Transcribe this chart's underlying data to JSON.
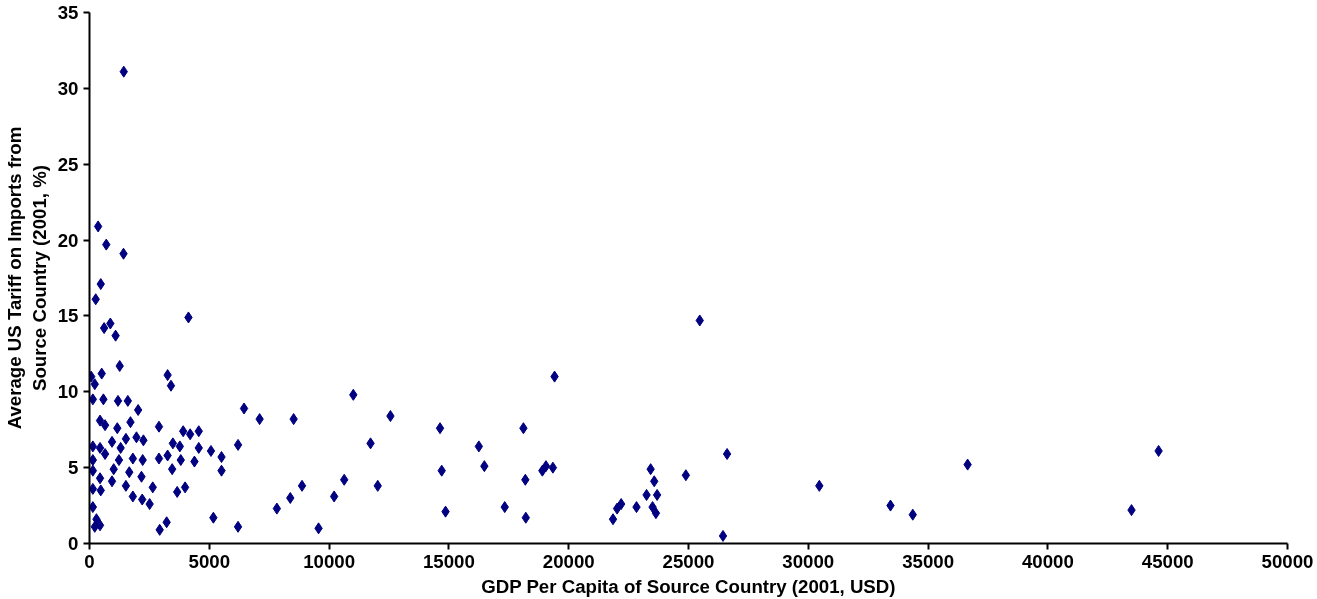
{
  "chart_data": {
    "type": "scatter",
    "xlabel": "GDP Per Capita of Source Country (2001, USD)",
    "ylabel": "Average US Tariff on Imports from Source Country (2001, %)",
    "marker": "diamond",
    "grid": false,
    "xlim": [
      0,
      50000
    ],
    "ylim": [
      0,
      35
    ],
    "xticks": [
      0,
      5000,
      10000,
      15000,
      20000,
      25000,
      30000,
      35000,
      40000,
      45000,
      50000
    ],
    "yticks": [
      0,
      5,
      10,
      15,
      20,
      25,
      30,
      35
    ],
    "series": [
      {
        "color": "#000080",
        "x": [
          1430,
          360,
          700,
          1420,
          470,
          260,
          4130,
          870,
          610,
          1090,
          1260,
          70,
          510,
          3260,
          3400,
          220,
          140,
          580,
          1190,
          1600,
          2030,
          440,
          650,
          1160,
          1710,
          2900,
          3910,
          4560,
          4200,
          140,
          440,
          940,
          1300,
          1520,
          1960,
          2250,
          3480,
          3770,
          4560,
          5070,
          6200,
          140,
          650,
          1230,
          1810,
          2220,
          2900,
          3260,
          3810,
          4380,
          5510,
          140,
          1010,
          1660,
          3450,
          5510,
          440,
          940,
          1520,
          2170,
          2640,
          140,
          470,
          3660,
          3990,
          1810,
          2200,
          2510,
          140,
          7820,
          8380,
          8870,
          10210,
          10630,
          12030,
          14630,
          14700,
          14860,
          11010,
          12560,
          11730,
          6450,
          7100,
          8520,
          290,
          220,
          440,
          2930,
          3220,
          5170,
          6200,
          9560,
          25470,
          19410,
          18110,
          16250,
          16480,
          18190,
          19050,
          18900,
          19340,
          17330,
          18210,
          21850,
          22020,
          22190,
          22830,
          23250,
          23420,
          23570,
          23690,
          23500,
          23640,
          24890,
          26610,
          26440,
          30460,
          33430,
          34360,
          36650,
          43490,
          44620
        ],
        "values": [
          31.1,
          20.9,
          19.7,
          19.1,
          17.1,
          16.1,
          14.9,
          14.5,
          14.2,
          13.7,
          11.7,
          11.0,
          11.2,
          11.1,
          10.4,
          10.5,
          9.5,
          9.5,
          9.4,
          9.4,
          8.8,
          8.1,
          7.8,
          7.6,
          8.0,
          7.7,
          7.4,
          7.4,
          7.2,
          6.4,
          6.3,
          6.7,
          6.3,
          6.9,
          7.0,
          6.8,
          6.6,
          6.4,
          6.3,
          6.1,
          6.5,
          5.5,
          5.9,
          5.5,
          5.6,
          5.5,
          5.6,
          5.8,
          5.5,
          5.4,
          5.7,
          4.8,
          4.9,
          4.7,
          4.9,
          4.8,
          4.3,
          4.1,
          3.8,
          4.4,
          3.7,
          3.6,
          3.5,
          3.4,
          3.7,
          3.1,
          2.9,
          2.6,
          2.4,
          2.3,
          3.0,
          3.8,
          3.1,
          4.2,
          3.8,
          7.6,
          4.8,
          2.1,
          9.8,
          8.4,
          6.6,
          8.9,
          8.2,
          8.2,
          1.6,
          1.1,
          1.2,
          0.9,
          1.4,
          1.7,
          1.1,
          1.0,
          14.7,
          11.0,
          7.6,
          6.4,
          5.1,
          4.2,
          5.1,
          4.8,
          5.0,
          2.4,
          1.7,
          1.6,
          2.3,
          2.6,
          2.4,
          3.2,
          4.9,
          4.1,
          3.2,
          2.4,
          2.0,
          4.5,
          5.9,
          0.5,
          3.8,
          2.5,
          1.9,
          5.2,
          2.2,
          6.1
        ]
      }
    ]
  }
}
